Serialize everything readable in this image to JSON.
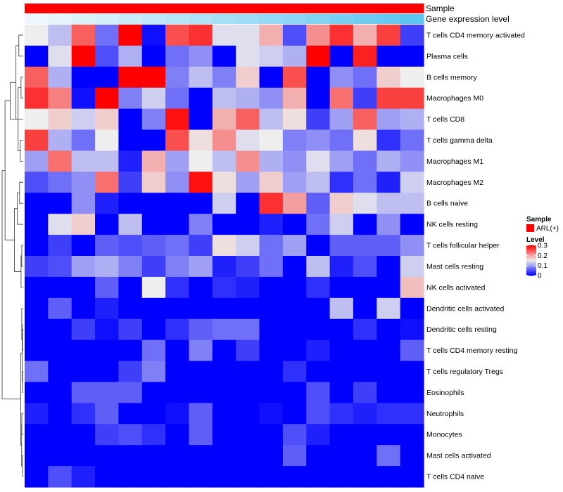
{
  "chart_data": {
    "type": "heatmap",
    "title": "",
    "rows": [
      "T cells CD4 memory activated",
      "Plasma cells",
      "B cells memory",
      "Macrophages M0",
      "T cells CD8",
      "T cells gamma delta",
      "Macrophages M1",
      "Macrophages M2",
      "B cells naive",
      "NK cells resting",
      "T cells follicular helper",
      "Mast cells resting",
      "NK cells activated",
      "Dendritic cells activated",
      "Dendritic cells resting",
      "T cells CD4 memory resting",
      "T cells regulatory  Tregs",
      "Eosinophils",
      "Neutrophils",
      "Monocytes",
      "Mast cells activated",
      "T cells CD4 naive"
    ],
    "n_columns": 17,
    "values": [
      [
        0.15,
        0.12,
        0.24,
        0.07,
        0.31,
        0.01,
        0.25,
        0.27,
        0.14,
        0.14,
        0.19,
        0.05,
        0.21,
        0.27,
        0.19,
        0.26,
        0.04
      ],
      [
        0.0,
        0.14,
        0.3,
        0.05,
        0.11,
        0.0,
        0.07,
        0.09,
        0.0,
        0.14,
        0.13,
        0.11,
        0.31,
        0.0,
        0.28,
        0.0,
        0.0
      ],
      [
        0.24,
        0.11,
        0.0,
        0.0,
        0.31,
        0.31,
        0.08,
        0.12,
        0.08,
        0.17,
        0.0,
        0.25,
        0.0,
        0.09,
        0.07,
        0.17,
        0.15
      ],
      [
        0.27,
        0.22,
        0.01,
        0.31,
        0.08,
        0.13,
        0.07,
        0.0,
        0.12,
        0.11,
        0.09,
        0.19,
        0.0,
        0.23,
        0.04,
        0.26,
        0.26
      ],
      [
        0.15,
        0.17,
        0.13,
        0.17,
        0.0,
        0.08,
        0.29,
        0.0,
        0.19,
        0.24,
        0.12,
        0.16,
        0.04,
        0.1,
        0.24,
        0.1,
        0.11
      ],
      [
        0.26,
        0.11,
        0.07,
        0.15,
        0.0,
        0.0,
        0.25,
        0.16,
        0.21,
        0.14,
        0.15,
        0.08,
        0.09,
        0.07,
        0.16,
        0.03,
        0.07
      ],
      [
        0.1,
        0.23,
        0.12,
        0.12,
        0.02,
        0.19,
        0.1,
        0.15,
        0.12,
        0.21,
        0.11,
        0.09,
        0.14,
        0.1,
        0.07,
        0.11,
        0.09
      ],
      [
        0.05,
        0.07,
        0.09,
        0.23,
        0.04,
        0.17,
        0.09,
        0.29,
        0.16,
        0.1,
        0.17,
        0.1,
        0.12,
        0.03,
        0.07,
        0.02,
        0.13
      ],
      [
        0.0,
        0.0,
        0.09,
        0.02,
        0.0,
        0.0,
        0.0,
        0.0,
        0.13,
        0.0,
        0.27,
        0.2,
        0.06,
        0.17,
        0.14,
        0.12,
        0.12
      ],
      [
        0.0,
        0.14,
        0.17,
        0.0,
        0.12,
        0.0,
        0.0,
        0.08,
        0.0,
        0.0,
        0.02,
        0.0,
        0.07,
        0.13,
        0.0,
        0.09,
        0.0
      ],
      [
        0.0,
        0.04,
        0.0,
        0.06,
        0.05,
        0.06,
        0.07,
        0.04,
        0.16,
        0.13,
        0.07,
        0.1,
        0.0,
        0.06,
        0.06,
        0.06,
        0.09
      ],
      [
        0.04,
        0.05,
        0.1,
        0.11,
        0.08,
        0.04,
        0.08,
        0.1,
        0.02,
        0.04,
        0.07,
        0.0,
        0.12,
        0.02,
        0.05,
        0.0,
        0.13
      ],
      [
        0.0,
        0.0,
        0.0,
        0.06,
        0.0,
        0.15,
        0.03,
        0.0,
        0.03,
        0.02,
        0.0,
        0.0,
        0.03,
        0.0,
        0.0,
        0.0,
        0.18
      ],
      [
        0.0,
        0.06,
        0.0,
        0.02,
        0.0,
        0.0,
        0.0,
        0.0,
        0.0,
        0.0,
        0.0,
        0.0,
        0.0,
        0.12,
        0.0,
        0.13,
        0.0
      ],
      [
        0.0,
        0.0,
        0.04,
        0.01,
        0.04,
        0.0,
        0.03,
        0.06,
        0.07,
        0.07,
        0.0,
        0.0,
        0.0,
        0.0,
        0.03,
        0.0,
        0.01
      ],
      [
        0.0,
        0.0,
        0.0,
        0.0,
        0.0,
        0.07,
        0.0,
        0.08,
        0.0,
        0.04,
        0.0,
        0.0,
        0.02,
        0.0,
        0.0,
        0.0,
        0.06
      ],
      [
        0.07,
        0.0,
        0.0,
        0.0,
        0.04,
        0.08,
        0.0,
        0.0,
        0.0,
        0.0,
        0.0,
        0.03,
        0.0,
        0.0,
        0.0,
        0.0,
        0.0
      ],
      [
        0.0,
        0.0,
        0.06,
        0.06,
        0.06,
        0.0,
        0.0,
        0.0,
        0.0,
        0.0,
        0.0,
        0.0,
        0.05,
        0.0,
        0.04,
        0.0,
        0.0
      ],
      [
        0.02,
        0.0,
        0.03,
        0.06,
        0.0,
        0.0,
        0.01,
        0.06,
        0.0,
        0.0,
        0.01,
        0.0,
        0.05,
        0.03,
        0.02,
        0.03,
        0.03
      ],
      [
        0.0,
        0.0,
        0.0,
        0.04,
        0.05,
        0.03,
        0.0,
        0.06,
        0.0,
        0.0,
        0.0,
        0.05,
        0.02,
        0.0,
        0.0,
        0.0,
        0.0
      ],
      [
        0.0,
        0.0,
        0.0,
        0.0,
        0.0,
        0.0,
        0.0,
        0.0,
        0.0,
        0.0,
        0.0,
        0.06,
        0.0,
        0.0,
        0.0,
        0.07,
        0.0
      ],
      [
        0.0,
        0.05,
        0.02,
        0.0,
        0.0,
        0.0,
        0.0,
        0.0,
        0.0,
        0.0,
        0.0,
        0.0,
        0.0,
        0.0,
        0.0,
        0.0,
        0.0
      ]
    ],
    "color_scale": {
      "stops": [
        0,
        0.15,
        0.3
      ],
      "colors": [
        "#0000FF",
        "#EEEEEE",
        "#FF0000"
      ],
      "domain": [
        0,
        0.3
      ]
    },
    "column_annotations": [
      {
        "name": "Sample",
        "color": "#FF0000",
        "values": [
          "ARL(+)",
          "ARL(+)",
          "ARL(+)",
          "ARL(+)",
          "ARL(+)",
          "ARL(+)",
          "ARL(+)",
          "ARL(+)",
          "ARL(+)",
          "ARL(+)",
          "ARL(+)",
          "ARL(+)",
          "ARL(+)",
          "ARL(+)",
          "ARL(+)",
          "ARL(+)",
          "ARL(+)"
        ]
      },
      {
        "name": "Gene expression level",
        "color_low": "#EEF8FC",
        "color_high": "#56C4F0",
        "values": [
          0.0,
          0.06,
          0.12,
          0.18,
          0.24,
          0.3,
          0.36,
          0.42,
          0.48,
          0.54,
          0.6,
          0.66,
          0.72,
          0.78,
          0.84,
          0.9,
          0.96
        ]
      }
    ],
    "row_dendrogram": {
      "merges": [
        [
          5,
          6,
          4
        ],
        [
          2,
          3,
          3
        ],
        [
          0,
          1,
          6
        ],
        [
          22,
          23,
          7
        ],
        [
          4,
          24,
          10
        ],
        [
          25,
          26,
          18
        ],
        [
          7,
          8,
          5
        ],
        [
          9,
          28,
          8
        ],
        [
          10,
          11,
          2
        ],
        [
          12,
          30,
          3
        ],
        [
          29,
          31,
          12
        ],
        [
          27,
          32,
          25
        ],
        [
          14,
          15,
          1
        ],
        [
          16,
          17,
          1
        ],
        [
          13,
          34,
          2
        ],
        [
          35,
          36,
          1.5
        ],
        [
          18,
          19,
          2
        ],
        [
          20,
          21,
          1
        ],
        [
          38,
          39,
          2.2
        ],
        [
          37,
          40,
          3.5
        ],
        [
          33,
          41,
          29
        ]
      ],
      "max_height": 29
    },
    "legend": {
      "sample_title": "Sample",
      "sample_entry": "ARL(+)",
      "level_title": "Level",
      "level_ticks": [
        {
          "label": "0.3",
          "value": 0.3
        },
        {
          "label": "0.2",
          "value": 0.2
        },
        {
          "label": "0.1",
          "value": 0.1
        },
        {
          "label": "0",
          "value": 0
        }
      ]
    }
  }
}
